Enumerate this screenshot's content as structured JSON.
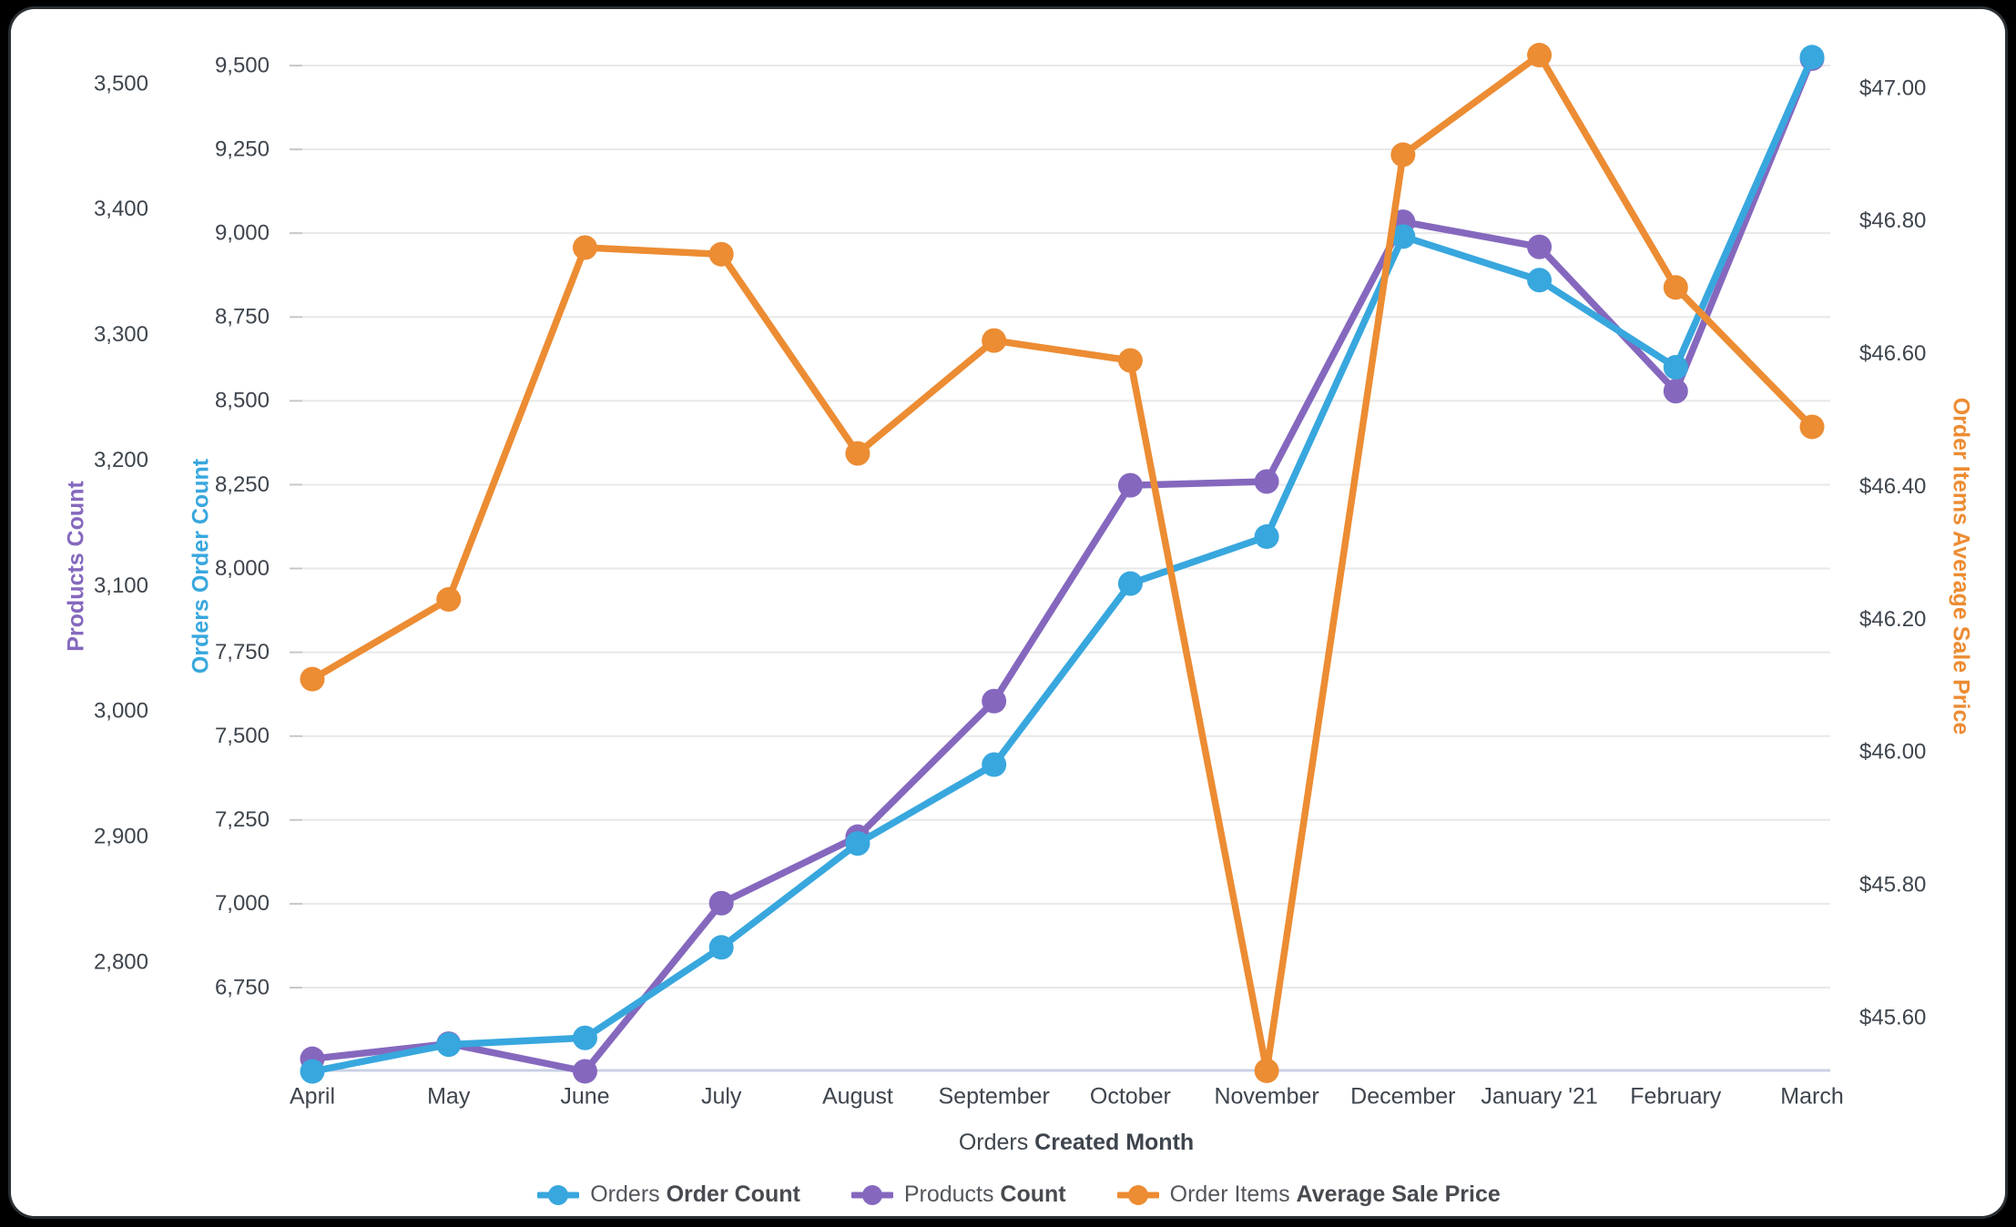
{
  "page": {
    "background": "#000000",
    "card_background": "#FFFFFF",
    "grid_color": "#E8E8E8",
    "axis_line_color": "#C9D0E6",
    "tick_mark_color": "#C4C8CC",
    "tick_text_color": "#3E454D",
    "legend_text_color": "#53575C"
  },
  "chart_data": {
    "type": "line",
    "grid": true,
    "legend_position": "bottom",
    "x": {
      "title_view": "Orders",
      "title_field": "Created Month",
      "categories": [
        "April",
        "May",
        "June",
        "July",
        "August",
        "September",
        "October",
        "November",
        "December",
        "January '21",
        "February",
        "March"
      ]
    },
    "series": [
      {
        "name_view": "Orders",
        "name_field": "Order Count",
        "axis": "orders",
        "color": "#38A7DE",
        "values": [
          6500,
          6580,
          6600,
          6870,
          7180,
          7415,
          7955,
          8095,
          8990,
          8860,
          8600,
          9525
        ]
      },
      {
        "name_view": "Products",
        "name_field": "Count",
        "axis": "products",
        "color": "#8568BE",
        "values": [
          2723,
          2735,
          2713,
          2847,
          2900,
          3008,
          3180,
          3183,
          3390,
          3370,
          3255,
          3520
        ]
      },
      {
        "name_view": "Order Items",
        "name_field": "Average Sale Price",
        "axis": "price",
        "color": "#EC8C33",
        "values": [
          46.11,
          46.23,
          46.76,
          46.75,
          46.45,
          46.62,
          46.59,
          45.52,
          46.9,
          47.05,
          46.7,
          46.49
        ]
      }
    ],
    "axes": {
      "products": {
        "title": "Products Count",
        "color": "#8568BE",
        "tick_values": [
          3500,
          3400,
          3300,
          3200,
          3100,
          3000,
          2900,
          2800
        ],
        "tick_labels": [
          "3,500",
          "3,400",
          "3,300",
          "3,200",
          "3,100",
          "3,000",
          "2,900",
          "2,800"
        ]
      },
      "orders": {
        "title": "Orders Order Count",
        "color": "#38A7DE",
        "tick_values": [
          9500,
          9250,
          9000,
          8750,
          8500,
          8250,
          8000,
          7750,
          7500,
          7250,
          7000,
          6750
        ],
        "tick_labels": [
          "9,500",
          "9,250",
          "9,000",
          "8,750",
          "8,500",
          "8,250",
          "8,000",
          "7,750",
          "7,500",
          "7,250",
          "7,000",
          "6,750"
        ]
      },
      "price": {
        "title": "Order Items Average Sale Price",
        "color": "#EC8C33",
        "tick_values": [
          47.0,
          46.8,
          46.6,
          46.4,
          46.2,
          46.0,
          45.8,
          45.6
        ],
        "tick_labels": [
          "$47.00",
          "$46.80",
          "$46.60",
          "$46.40",
          "$46.20",
          "$46.00",
          "$45.80",
          "$45.60"
        ]
      }
    }
  }
}
